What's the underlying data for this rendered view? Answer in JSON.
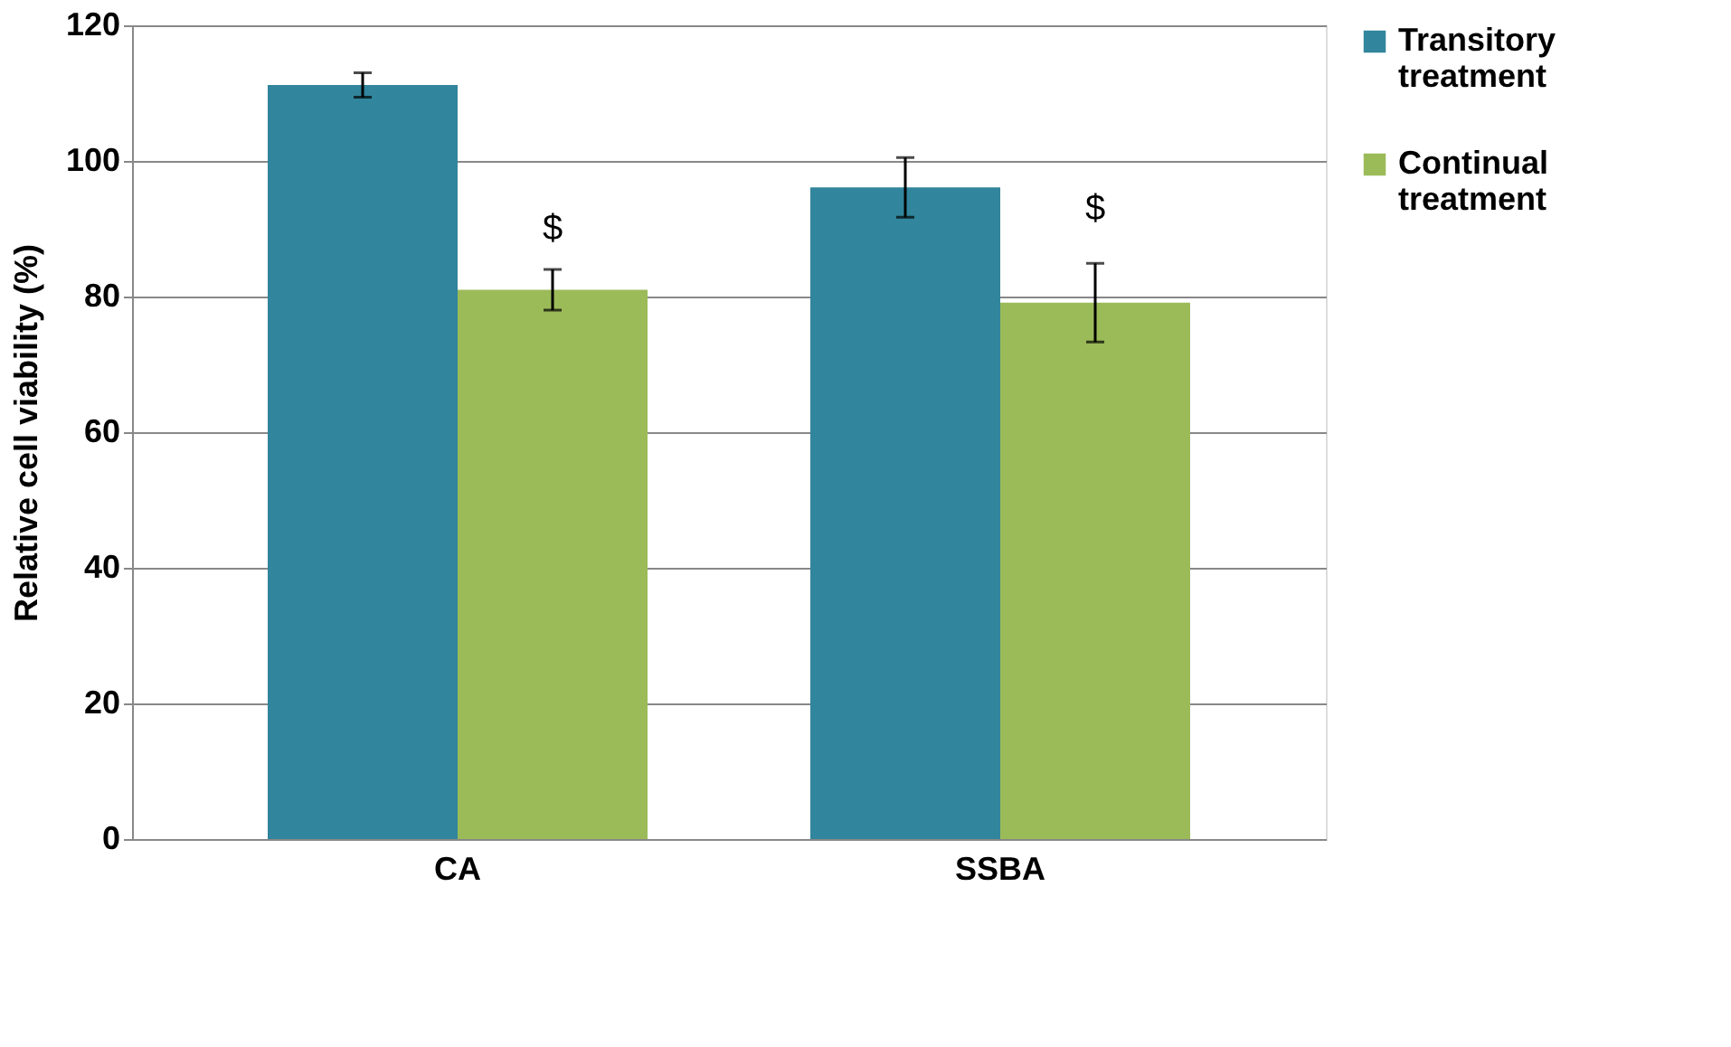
{
  "chart_data": {
    "type": "bar",
    "ylabel": "Relative cell viability (%)",
    "categories": [
      "CA",
      "SSBA"
    ],
    "series": [
      {
        "name": "Transitory treatment",
        "color": "#31859c",
        "values": [
          111.2,
          96.1
        ],
        "errors": [
          1.8,
          4.4
        ]
      },
      {
        "name": "Continual treatment",
        "color": "#9bbb59",
        "values": [
          81,
          79.1
        ],
        "errors": [
          3,
          5.8
        ]
      }
    ],
    "ylim": [
      0,
      120
    ],
    "yticks": [
      0,
      20,
      40,
      60,
      80,
      100,
      120
    ],
    "grid": "y",
    "legend": "top right",
    "annotations": [
      {
        "text": "$",
        "x": "CA",
        "y": 90
      },
      {
        "text": "$",
        "x": "SSBA",
        "y": 93
      }
    ]
  }
}
